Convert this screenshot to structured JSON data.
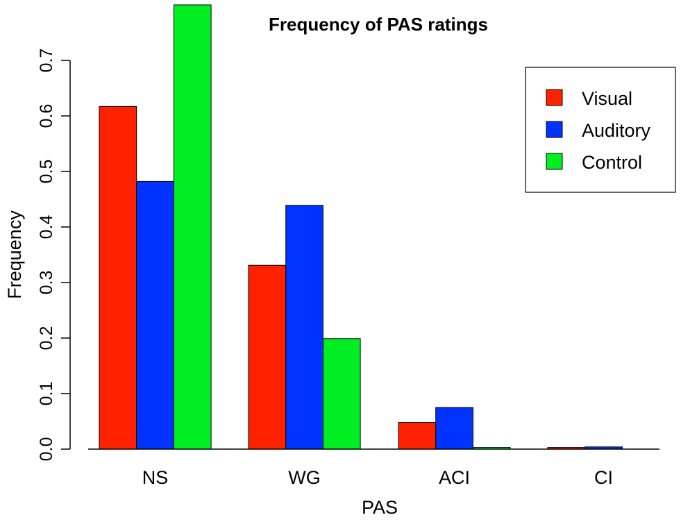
{
  "chart_data": {
    "type": "bar",
    "title": "Frequency of PAS ratings",
    "xlabel": "PAS",
    "ylabel": "Frequency",
    "categories": [
      "NS",
      "WG",
      "ACI",
      "CI"
    ],
    "series": [
      {
        "name": "Visual",
        "color": "#ff2200",
        "values": [
          0.617,
          0.331,
          0.048,
          0.003
        ]
      },
      {
        "name": "Auditory",
        "color": "#0033ff",
        "values": [
          0.482,
          0.439,
          0.075,
          0.004
        ]
      },
      {
        "name": "Control",
        "color": "#00ee22",
        "values": [
          0.8,
          0.199,
          0.003,
          0.0
        ]
      }
    ],
    "ylim": [
      0,
      0.8
    ],
    "yticks": [
      "0.0",
      "0.1",
      "0.2",
      "0.3",
      "0.4",
      "0.5",
      "0.6",
      "0.7"
    ],
    "grid": false,
    "legend": "top-right"
  }
}
